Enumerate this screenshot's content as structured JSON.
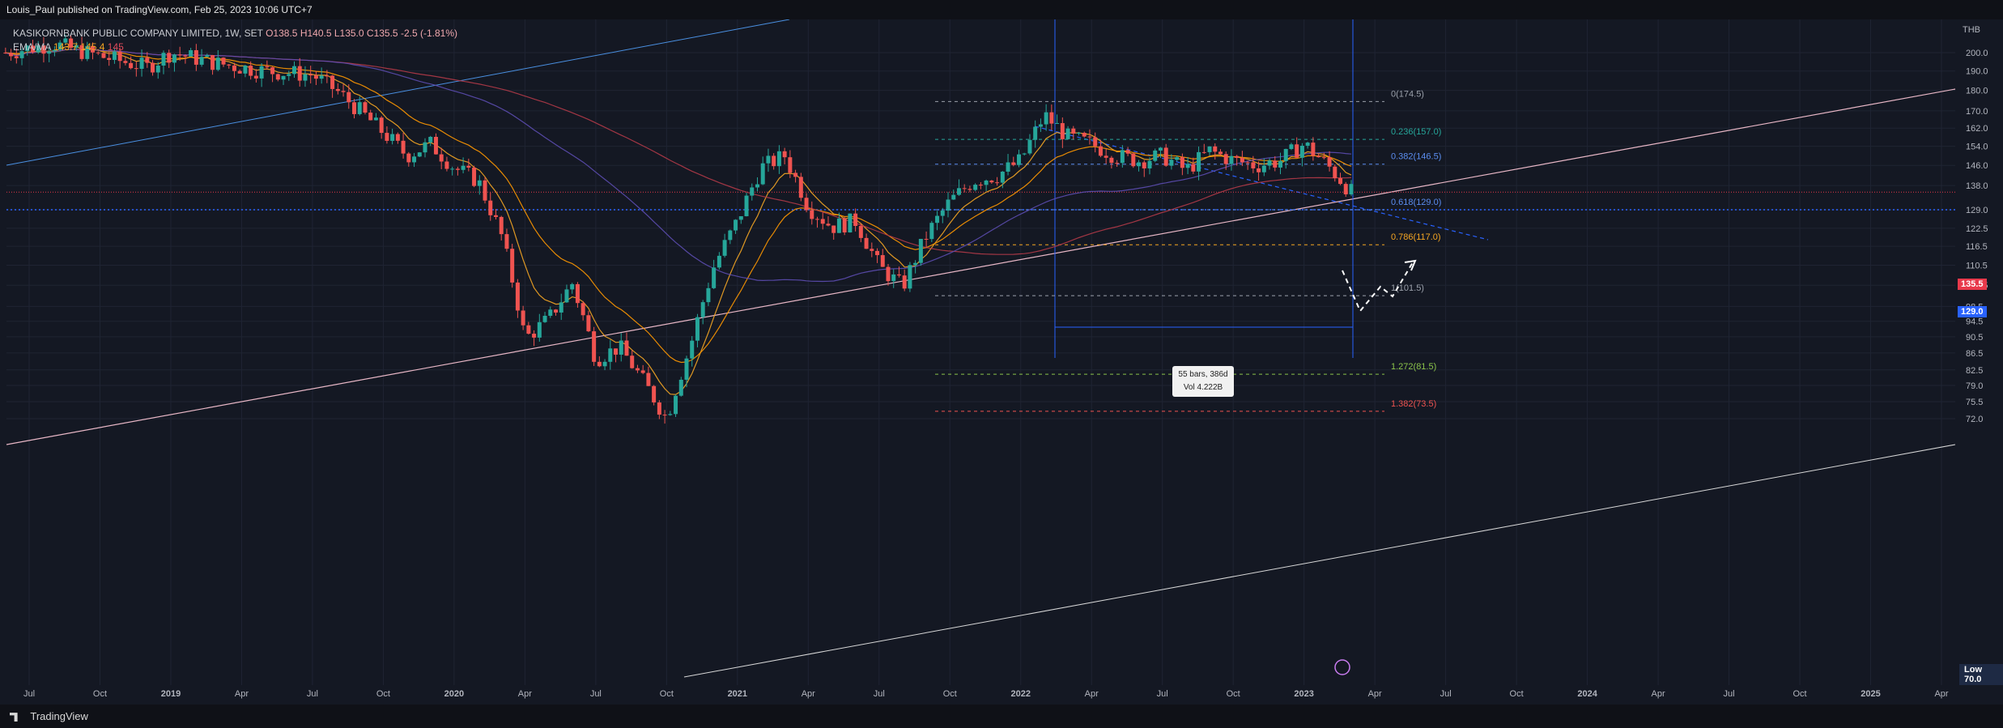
{
  "header": {
    "published": "Louis_Paul published on TradingView.com, Feb 25, 2023 10:06 UTC+7"
  },
  "legend": {
    "symbol_line": "KASIKORNBANK PUBLIC COMPANY LIMITED, 1W, SET",
    "ohlc": {
      "o": "O138.5",
      "h": "H140.5",
      "l": "L135.0",
      "c": "C135.5",
      "chg": "-2.5 (-1.81%)"
    },
    "ema_label": "EMA/MA",
    "ema_val1": "143.7",
    "ema_val2": "145.4",
    "ema_val3": "145"
  },
  "price_tags": {
    "last": "135.5",
    "level": "129.0",
    "low_label": "Low",
    "low_value": "70.0"
  },
  "tooltip": {
    "line1": "55 bars, 386d",
    "line2": "Vol 4.222B"
  },
  "footer": {
    "brand": "TradingView"
  },
  "colors": {
    "up": "#26a69a",
    "down": "#ef5350",
    "bg": "#141823",
    "accent_blue": "#2962ff"
  },
  "chart_data": {
    "type": "candlestick",
    "title": "KASIKORNBANK PUBLIC COMPANY LIMITED, 1W, SET",
    "y_axis": {
      "unit": "THB",
      "ticks": [
        200.0,
        190.0,
        180.0,
        170.0,
        162.0,
        154.0,
        146.0,
        138.0,
        129.0,
        122.5,
        116.5,
        110.5,
        104.5,
        98.5,
        94.5,
        90.5,
        86.5,
        82.5,
        79.0,
        75.5,
        72.0
      ],
      "scale": "log"
    },
    "x_axis": {
      "ticks": [
        "Jul",
        "Oct",
        "2019",
        "Apr",
        "Jul",
        "Oct",
        "2020",
        "Apr",
        "Jul",
        "Oct",
        "2021",
        "Apr",
        "Jul",
        "Oct",
        "2022",
        "Apr",
        "Jul",
        "Oct",
        "2023",
        "Apr",
        "Jul",
        "Oct",
        "2024",
        "Apr",
        "Jul",
        "Oct",
        "2025",
        "Apr"
      ]
    },
    "fib_levels": [
      {
        "label": "0(174.5)",
        "price": 174.5,
        "color": "#9aa0aa"
      },
      {
        "label": "0.236(157.0)",
        "price": 157.0,
        "color": "#26a69a"
      },
      {
        "label": "0.382(146.5)",
        "price": 146.5,
        "color": "#5b8def"
      },
      {
        "label": "0.618(129.0)",
        "price": 129.0,
        "color": "#5b8def"
      },
      {
        "label": "0.786(117.0)",
        "price": 117.0,
        "color": "#f5a623"
      },
      {
        "label": "1(101.5)",
        "price": 101.5,
        "color": "#9aa0aa"
      },
      {
        "label": "1.272(81.5)",
        "price": 81.5,
        "color": "#8bc34a"
      },
      {
        "label": "1.382(73.5)",
        "price": 73.5,
        "color": "#ef5350"
      }
    ],
    "price_path": [
      [
        "2018-06",
        200
      ],
      [
        "2018-08",
        205
      ],
      [
        "2018-10",
        198
      ],
      [
        "2018-12",
        192
      ],
      [
        "2019-01",
        200
      ],
      [
        "2019-03",
        194
      ],
      [
        "2019-05",
        190
      ],
      [
        "2019-07",
        188
      ],
      [
        "2019-08",
        180
      ],
      [
        "2019-10",
        160
      ],
      [
        "2019-11",
        150
      ],
      [
        "2019-12",
        155
      ],
      [
        "2020-01",
        145
      ],
      [
        "2020-02",
        140
      ],
      [
        "2020-03",
        120
      ],
      [
        "2020-04",
        90
      ],
      [
        "2020-05",
        95
      ],
      [
        "2020-06",
        105
      ],
      [
        "2020-07",
        85
      ],
      [
        "2020-08",
        88
      ],
      [
        "2020-09",
        80
      ],
      [
        "2020-10",
        72
      ],
      [
        "2020-11",
        88
      ],
      [
        "2020-12",
        110
      ],
      [
        "2021-01",
        125
      ],
      [
        "2021-02",
        145
      ],
      [
        "2021-03",
        150
      ],
      [
        "2021-04",
        130
      ],
      [
        "2021-05",
        123
      ],
      [
        "2021-06",
        125
      ],
      [
        "2021-07",
        110
      ],
      [
        "2021-08",
        104
      ],
      [
        "2021-09",
        120
      ],
      [
        "2021-10",
        132
      ],
      [
        "2021-11",
        140
      ],
      [
        "2021-12",
        142
      ],
      [
        "2022-01",
        148
      ],
      [
        "2022-02",
        168
      ],
      [
        "2022-03",
        158
      ],
      [
        "2022-04",
        155
      ],
      [
        "2022-05",
        150
      ],
      [
        "2022-06",
        148
      ],
      [
        "2022-07",
        150
      ],
      [
        "2022-08",
        144
      ],
      [
        "2022-09",
        152
      ],
      [
        "2022-10",
        148
      ],
      [
        "2022-11",
        146
      ],
      [
        "2022-12",
        148
      ],
      [
        "2023-01",
        155
      ],
      [
        "2023-02",
        146
      ],
      [
        "2023-03",
        135.5
      ]
    ],
    "ma_series": [
      {
        "name": "EMA fast",
        "color": "#f5a623"
      },
      {
        "name": "EMA slow",
        "color": "#ff9800"
      },
      {
        "name": "MA 200",
        "color": "#b23a48"
      },
      {
        "name": "MA 100",
        "color": "#5c4db1"
      }
    ]
  }
}
